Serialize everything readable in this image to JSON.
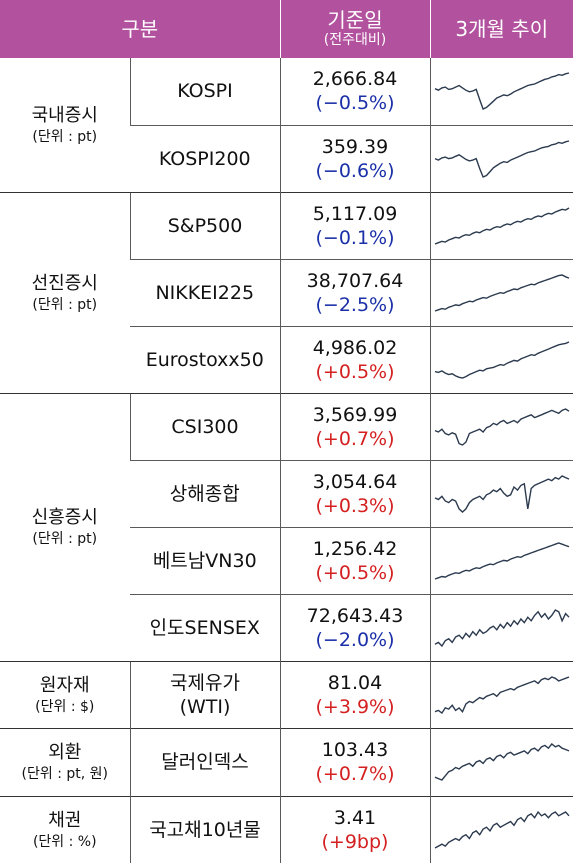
{
  "header": {
    "col_category": "구분",
    "col_base": "기준일",
    "col_base_sub": "(전주대비)",
    "col_trend": "3개월 추이"
  },
  "colors": {
    "header_bg": "#b2519e",
    "down": "#1a2fa8",
    "up": "#d42020",
    "line": "#2b3a4e"
  },
  "groups": [
    {
      "name": "국내증시",
      "unit": "(단위 : pt)",
      "rows": [
        {
          "name": "KOSPI",
          "value": "2,666.84",
          "change": "(−0.5%)",
          "dir": "down",
          "trend": [
            46,
            48,
            45,
            44,
            47,
            46,
            44,
            42,
            45,
            48,
            50,
            49,
            47,
            60,
            72,
            70,
            66,
            62,
            58,
            56,
            54,
            55,
            53,
            50,
            48,
            46,
            44,
            42,
            41,
            40,
            38,
            36,
            34,
            33,
            31,
            30,
            28,
            29,
            27,
            26
          ]
        },
        {
          "name": "KOSPI200",
          "value": "359.39",
          "change": "(−0.6%)",
          "dir": "down",
          "trend": [
            48,
            50,
            47,
            46,
            48,
            47,
            45,
            43,
            46,
            49,
            51,
            50,
            48,
            61,
            72,
            70,
            65,
            60,
            57,
            54,
            52,
            53,
            50,
            48,
            46,
            44,
            42,
            40,
            39,
            38,
            36,
            34,
            33,
            32,
            30,
            29,
            27,
            28,
            26,
            25
          ]
        }
      ]
    },
    {
      "name": "선진증시",
      "unit": "(단위 : pt)",
      "rows": [
        {
          "name": "S&P500",
          "value": "5,117.09",
          "change": "(−0.1%)",
          "dir": "down",
          "trend": [
            72,
            70,
            68,
            69,
            66,
            64,
            62,
            63,
            60,
            58,
            59,
            56,
            54,
            55,
            52,
            50,
            51,
            48,
            46,
            47,
            44,
            42,
            43,
            40,
            38,
            39,
            36,
            34,
            35,
            32,
            30,
            31,
            28,
            26,
            27,
            24,
            22,
            20,
            21,
            18
          ]
        },
        {
          "name": "NIKKEI225",
          "value": "38,707.64",
          "change": "(−2.5%)",
          "dir": "down",
          "trend": [
            74,
            72,
            70,
            71,
            68,
            66,
            64,
            65,
            62,
            60,
            58,
            59,
            56,
            54,
            52,
            53,
            50,
            48,
            46,
            44,
            45,
            42,
            40,
            38,
            39,
            36,
            34,
            32,
            30,
            31,
            28,
            26,
            24,
            22,
            20,
            18,
            16,
            15,
            18,
            20
          ]
        },
        {
          "name": "Eurostoxx50",
          "value": "4,986.02",
          "change": "(+0.5%)",
          "dir": "up",
          "trend": [
            62,
            63,
            61,
            64,
            66,
            65,
            68,
            70,
            71,
            69,
            66,
            64,
            62,
            60,
            61,
            58,
            57,
            56,
            54,
            52,
            53,
            50,
            48,
            46,
            47,
            44,
            42,
            40,
            38,
            39,
            36,
            34,
            32,
            30,
            28,
            26,
            24,
            23,
            22,
            20
          ]
        }
      ]
    },
    {
      "name": "신흥증시",
      "unit": "(단위 : pt)",
      "rows": [
        {
          "name": "CSI300",
          "value": "3,569.99",
          "change": "(+0.7%)",
          "dir": "up",
          "trend": [
            40,
            42,
            38,
            44,
            46,
            43,
            45,
            58,
            60,
            56,
            44,
            42,
            40,
            38,
            42,
            36,
            34,
            30,
            32,
            28,
            26,
            30,
            28,
            26,
            29,
            24,
            22,
            20,
            18,
            22,
            20,
            18,
            16,
            14,
            12,
            14,
            16,
            12,
            10,
            13
          ]
        },
        {
          "name": "상해종합",
          "value": "3,054.64",
          "change": "(+0.3%)",
          "dir": "up",
          "trend": [
            36,
            38,
            34,
            40,
            42,
            38,
            40,
            50,
            54,
            50,
            42,
            38,
            36,
            34,
            38,
            32,
            30,
            26,
            28,
            24,
            30,
            34,
            32,
            22,
            26,
            20,
            18,
            50,
            24,
            20,
            18,
            16,
            14,
            12,
            14,
            10,
            12,
            8,
            10,
            12
          ]
        },
        {
          "name": "베트남VN30",
          "value": "1,256.42",
          "change": "(+0.5%)",
          "dir": "up",
          "trend": [
            70,
            68,
            66,
            67,
            64,
            62,
            60,
            61,
            58,
            56,
            57,
            54,
            52,
            53,
            50,
            48,
            46,
            47,
            44,
            42,
            40,
            41,
            38,
            36,
            34,
            35,
            32,
            30,
            28,
            26,
            24,
            22,
            20,
            18,
            16,
            14,
            12,
            14,
            16,
            18
          ]
        },
        {
          "name": "인도SENSEX",
          "value": "72,643.43",
          "change": "(−2.0%)",
          "dir": "down",
          "trend": [
            48,
            46,
            50,
            44,
            42,
            46,
            40,
            38,
            42,
            36,
            40,
            34,
            38,
            32,
            36,
            34,
            30,
            28,
            32,
            26,
            30,
            24,
            28,
            22,
            26,
            20,
            24,
            18,
            22,
            16,
            12,
            18,
            14,
            20,
            16,
            10,
            12,
            22,
            14,
            18
          ]
        }
      ]
    },
    {
      "name": "원자재",
      "unit": "(단위 : $)",
      "rows": [
        {
          "name": "국제유가",
          "name2": "(WTI)",
          "value": "81.04",
          "change": "(+3.9%)",
          "dir": "up",
          "trend": [
            62,
            60,
            64,
            56,
            58,
            52,
            60,
            56,
            62,
            50,
            46,
            48,
            44,
            40,
            42,
            38,
            36,
            34,
            38,
            32,
            30,
            28,
            26,
            28,
            24,
            22,
            20,
            18,
            16,
            14,
            18,
            12,
            10,
            12,
            8,
            10,
            14,
            12,
            10,
            8
          ]
        }
      ]
    },
    {
      "name": "외환",
      "unit": "(단위 : pt, 원)",
      "rows": [
        {
          "name": "달러인덱스",
          "value": "103.43",
          "change": "(+0.7%)",
          "dir": "up",
          "trend": [
            58,
            60,
            62,
            56,
            50,
            48,
            44,
            46,
            42,
            40,
            38,
            42,
            36,
            34,
            38,
            32,
            30,
            34,
            28,
            26,
            30,
            24,
            22,
            26,
            24,
            22,
            20,
            24,
            18,
            16,
            20,
            14,
            12,
            16,
            10,
            14,
            12,
            16,
            18,
            20
          ]
        }
      ]
    },
    {
      "name": "채권",
      "unit": "(단위 : %)",
      "rows": [
        {
          "name": "국고채10년물",
          "value": "3.41",
          "change": "(+9bp)",
          "dir": "up",
          "trend": [
            48,
            46,
            44,
            46,
            42,
            40,
            38,
            40,
            36,
            34,
            38,
            32,
            30,
            34,
            28,
            26,
            30,
            24,
            22,
            26,
            24,
            22,
            20,
            24,
            18,
            16,
            20,
            14,
            12,
            16,
            10,
            14,
            12,
            16,
            12,
            10,
            14,
            12,
            10,
            14
          ]
        }
      ]
    }
  ]
}
